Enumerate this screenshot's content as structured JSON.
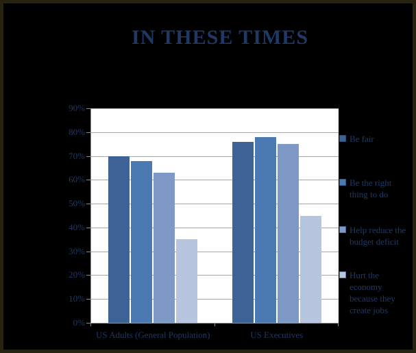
{
  "chart_data": {
    "type": "bar",
    "title": "IN THESE TIMES",
    "categories": [
      "US Adults (General Population)",
      "US Executives"
    ],
    "series": [
      {
        "name": "Be fair",
        "color": "#3D6396",
        "values": [
          70,
          76
        ]
      },
      {
        "name": "Be the right thing to do",
        "color": "#4B79B1",
        "values": [
          68,
          78
        ]
      },
      {
        "name": "Help reduce the budget deficit",
        "color": "#7F99C6",
        "values": [
          63,
          75
        ]
      },
      {
        "name": "Hurt the economy because they create jobs",
        "color": "#B7C5DF",
        "values": [
          35,
          45
        ]
      }
    ],
    "xlabel": "",
    "ylabel": "",
    "ylim": [
      0,
      90
    ],
    "y_tick_step": 10,
    "y_tick_labels": [
      "0%",
      "10%",
      "20%",
      "30%",
      "40%",
      "50%",
      "60%",
      "70%",
      "80%",
      "90%"
    ],
    "grid": true,
    "legend_position": "right",
    "values_unit": "percent"
  },
  "style": {
    "page_background": "#000000",
    "frame_border_color": "#272312",
    "plot_background": "#FFFFFF",
    "gridline_color": "#A6A6A6",
    "axis_color": "#8F8F8F",
    "title_color": "#1F3864",
    "label_color": "#1F3864"
  }
}
